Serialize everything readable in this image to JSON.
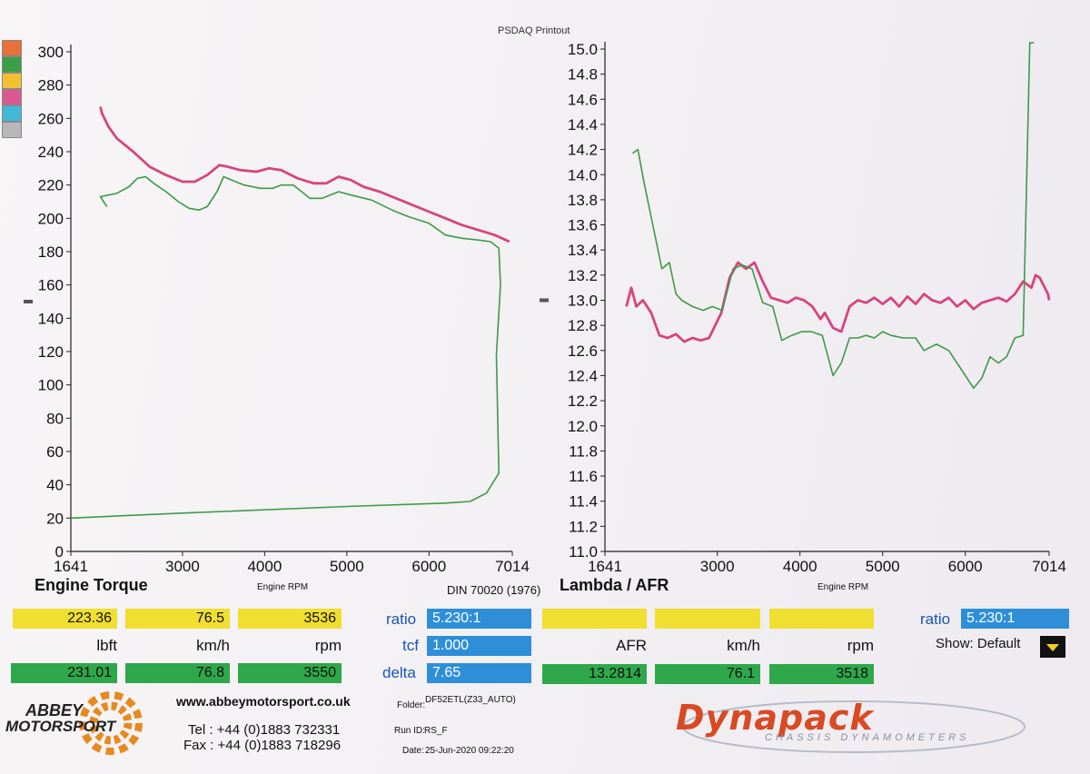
{
  "header": {
    "printout_title": "PSDAQ Printout"
  },
  "legend_colors": [
    "#e8703a",
    "#3aa048",
    "#f0c030",
    "#d85a90",
    "#40b8d8",
    "#b8b8b8"
  ],
  "chart_data": [
    {
      "type": "line",
      "title": "Engine Torque",
      "xlabel": "Engine RPM",
      "ylabel": "",
      "xlim": [
        1641,
        7014
      ],
      "ylim": [
        0,
        300
      ],
      "x_ticks": [
        1641,
        3000,
        4000,
        5000,
        6000,
        7014
      ],
      "y_ticks": [
        0,
        20,
        40,
        60,
        80,
        100,
        120,
        140,
        160,
        180,
        200,
        220,
        240,
        260,
        280,
        300
      ],
      "series": [
        {
          "color": "#d6457d",
          "x": [
            2000,
            2020,
            2100,
            2200,
            2400,
            2600,
            2800,
            3000,
            3150,
            3300,
            3450,
            3550,
            3700,
            3900,
            4050,
            4200,
            4400,
            4600,
            4750,
            4900,
            5050,
            5200,
            5400,
            5600,
            5800,
            6000,
            6200,
            6400,
            6600,
            6800,
            6980
          ],
          "y": [
            267,
            263,
            255,
            248,
            240,
            231,
            226,
            222,
            222,
            226,
            232,
            231,
            229,
            228,
            230,
            229,
            224,
            221,
            221,
            225,
            223,
            219,
            216,
            212,
            208,
            204,
            200,
            196,
            193,
            190,
            186
          ]
        },
        {
          "color": "#3f9a47",
          "x": [
            2080,
            2000,
            2100,
            2200,
            2350,
            2450,
            2550,
            2650,
            2800,
            2950,
            3080,
            3200,
            3300,
            3420,
            3500,
            3600,
            3750,
            3950,
            4100,
            4200,
            4350,
            4450,
            4550,
            4700,
            4900,
            5050,
            5300,
            5550,
            5750,
            6000,
            6200,
            6400,
            6600,
            6750,
            6850,
            6870,
            6820,
            6850,
            6700,
            6500,
            6200,
            5000,
            3000,
            1641
          ],
          "y": [
            207,
            213,
            214,
            215,
            219,
            224,
            225,
            221,
            216,
            210,
            206,
            205,
            207,
            216,
            225,
            223,
            220,
            218,
            218,
            220,
            220,
            216,
            212,
            212,
            216,
            214,
            211,
            205,
            201,
            197,
            190,
            188,
            187,
            186,
            182,
            160,
            118,
            47,
            35,
            30,
            29,
            27,
            23,
            20
          ]
        }
      ]
    },
    {
      "type": "line",
      "title": "Lambda / AFR",
      "xlabel": "Engine RPM",
      "ylabel": "",
      "xlim": [
        1641,
        7014
      ],
      "ylim": [
        11.0,
        15.0
      ],
      "x_ticks": [
        1641,
        3000,
        4000,
        5000,
        6000,
        7014
      ],
      "y_ticks": [
        11.0,
        11.2,
        11.4,
        11.6,
        11.8,
        12.0,
        12.2,
        12.4,
        12.6,
        12.8,
        13.0,
        13.2,
        13.4,
        13.6,
        13.8,
        14.0,
        14.2,
        14.4,
        14.6,
        14.8,
        15.0
      ],
      "series": [
        {
          "color": "#d6457d",
          "x": [
            1900,
            1960,
            2020,
            2100,
            2200,
            2300,
            2400,
            2500,
            2600,
            2700,
            2800,
            2900,
            3050,
            3150,
            3250,
            3350,
            3450,
            3550,
            3650,
            3750,
            3850,
            3950,
            4050,
            4150,
            4250,
            4300,
            4400,
            4500,
            4600,
            4700,
            4800,
            4900,
            5000,
            5100,
            5200,
            5300,
            5400,
            5500,
            5600,
            5700,
            5800,
            5900,
            6000,
            6100,
            6200,
            6300,
            6400,
            6500,
            6600,
            6700,
            6800,
            6850,
            6900,
            7000,
            7014
          ],
          "y": [
            12.95,
            13.1,
            12.95,
            13.0,
            12.9,
            12.72,
            12.7,
            12.73,
            12.67,
            12.7,
            12.68,
            12.7,
            12.9,
            13.18,
            13.3,
            13.25,
            13.3,
            13.15,
            13.02,
            13.0,
            12.98,
            13.02,
            13.0,
            12.95,
            12.85,
            12.9,
            12.78,
            12.75,
            12.95,
            13.0,
            12.98,
            13.02,
            12.97,
            13.02,
            12.95,
            13.03,
            12.97,
            13.05,
            13.0,
            12.98,
            13.02,
            12.95,
            13.0,
            12.93,
            12.98,
            13.0,
            13.02,
            12.99,
            13.05,
            13.15,
            13.1,
            13.2,
            13.18,
            13.05,
            13.0
          ]
        },
        {
          "color": "#3f9a47",
          "x": [
            1975,
            2040,
            2110,
            2220,
            2330,
            2420,
            2500,
            2570,
            2700,
            2830,
            2940,
            3060,
            3190,
            3300,
            3420,
            3550,
            3670,
            3780,
            3900,
            4020,
            4140,
            4270,
            4400,
            4500,
            4600,
            4700,
            4800,
            4900,
            5000,
            5100,
            5250,
            5400,
            5500,
            5650,
            5800,
            5950,
            6100,
            6200,
            6300,
            6400,
            6500,
            6600,
            6700,
            6780,
            6830
          ],
          "y": [
            14.17,
            14.2,
            13.95,
            13.6,
            13.25,
            13.3,
            13.05,
            13.0,
            12.95,
            12.92,
            12.95,
            12.92,
            13.25,
            13.28,
            13.25,
            12.98,
            12.95,
            12.68,
            12.72,
            12.75,
            12.75,
            12.72,
            12.4,
            12.5,
            12.7,
            12.7,
            12.72,
            12.7,
            12.75,
            12.72,
            12.7,
            12.7,
            12.6,
            12.65,
            12.6,
            12.45,
            12.3,
            12.38,
            12.55,
            12.5,
            12.55,
            12.7,
            12.72,
            15.05,
            15.05
          ]
        }
      ]
    }
  ],
  "torque_panel": {
    "title": "Engine Torque",
    "x_axis_label": "Engine RPM",
    "standard": "DIN 70020 (1976)",
    "cursor": [
      "223.36",
      "76.5",
      "3536"
    ],
    "units": [
      "lbft",
      "km/h",
      "rpm"
    ],
    "peak": [
      "231.01",
      "76.8",
      "3550"
    ],
    "ratio_label": "ratio",
    "ratio_value": "5.230:1",
    "tcf_label": "tcf",
    "tcf_value": "1.000",
    "delta_label": "delta",
    "delta_value": "7.65"
  },
  "afr_panel": {
    "title": "Lambda / AFR",
    "x_axis_label": "Engine RPM",
    "cursor": [
      "",
      "",
      ""
    ],
    "units": [
      "AFR",
      "km/h",
      "rpm"
    ],
    "peak": [
      "13.2814",
      "76.1",
      "3518"
    ],
    "ratio_label": "ratio",
    "ratio_value": "5.230:1",
    "show_label": "Show: Default"
  },
  "footer": {
    "company_line1": "ABBEY",
    "company_line2": "MOTORSPORT",
    "website": "www.abbeymotorsport.co.uk",
    "tel": "Tel : +44 (0)1883 732331",
    "fax": "Fax : +44 (0)1883 718296",
    "folder_label": "Folder:",
    "folder_value": "DF52ETL(Z33_AUTO)",
    "run_label": "Run ID:",
    "run_value": "RS_F",
    "date_label": "Date:",
    "date_value": "25-Jun-2020  09:22:20",
    "brand": "Dynapack",
    "brand_sub": "CHASSIS DYNAMOMETERS"
  }
}
